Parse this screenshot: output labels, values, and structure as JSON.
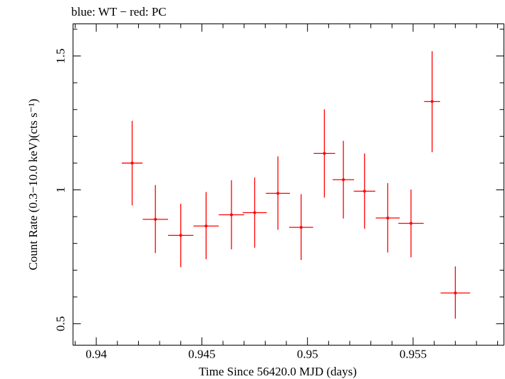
{
  "chart_data": {
    "type": "scatter",
    "title": "blue: WT − red: PC",
    "xlabel": "Time Since 56420.0 MJD (days)",
    "ylabel": "Count Rate (0.3−10.0 keV)(cts s⁻¹)",
    "xlim": [
      0.9389,
      0.9593
    ],
    "ylim": [
      0.42,
      1.62
    ],
    "xticks": [
      {
        "value": 0.94,
        "label": "0.94"
      },
      {
        "value": 0.945,
        "label": "0.945"
      },
      {
        "value": 0.95,
        "label": "0.95"
      },
      {
        "value": 0.955,
        "label": "0.955"
      }
    ],
    "yticks": [
      {
        "value": 0.5,
        "label": "0.5"
      },
      {
        "value": 1.0,
        "label": "1"
      },
      {
        "value": 1.5,
        "label": "1.5"
      }
    ],
    "grid": false,
    "series": [
      {
        "name": "PC",
        "color": "#ff0000",
        "points": [
          {
            "x": 0.9417,
            "y": 1.1,
            "xerr": 0.00049,
            "ylo": 0.942,
            "yhi": 1.258
          },
          {
            "x": 0.9428,
            "y": 0.89,
            "xerr": 0.0006,
            "ylo": 0.764,
            "yhi": 1.018
          },
          {
            "x": 0.944,
            "y": 0.83,
            "xerr": 0.0006,
            "ylo": 0.711,
            "yhi": 0.948
          },
          {
            "x": 0.9452,
            "y": 0.865,
            "xerr": 0.0006,
            "ylo": 0.741,
            "yhi": 0.992
          },
          {
            "x": 0.9464,
            "y": 0.907,
            "xerr": 0.0006,
            "ylo": 0.778,
            "yhi": 1.036
          },
          {
            "x": 0.9475,
            "y": 0.915,
            "xerr": 0.00057,
            "ylo": 0.784,
            "yhi": 1.046
          },
          {
            "x": 0.9486,
            "y": 0.987,
            "xerr": 0.00057,
            "ylo": 0.851,
            "yhi": 1.125
          },
          {
            "x": 0.9497,
            "y": 0.86,
            "xerr": 0.00057,
            "ylo": 0.738,
            "yhi": 0.984
          },
          {
            "x": 0.9508,
            "y": 1.136,
            "xerr": 0.00051,
            "ylo": 0.971,
            "yhi": 1.301
          },
          {
            "x": 0.9517,
            "y": 1.038,
            "xerr": 0.00051,
            "ylo": 0.893,
            "yhi": 1.183
          },
          {
            "x": 0.9527,
            "y": 0.995,
            "xerr": 0.00051,
            "ylo": 0.855,
            "yhi": 1.136
          },
          {
            "x": 0.9538,
            "y": 0.895,
            "xerr": 0.00057,
            "ylo": 0.766,
            "yhi": 1.025
          },
          {
            "x": 0.9549,
            "y": 0.875,
            "xerr": 0.0006,
            "ylo": 0.748,
            "yhi": 1.001
          },
          {
            "x": 0.9559,
            "y": 1.33,
            "xerr": 0.00038,
            "ylo": 1.141,
            "yhi": 1.518
          },
          {
            "x": 0.957,
            "y": 0.615,
            "xerr": 0.0007,
            "ylo": 0.519,
            "yhi": 0.714
          }
        ]
      }
    ]
  }
}
